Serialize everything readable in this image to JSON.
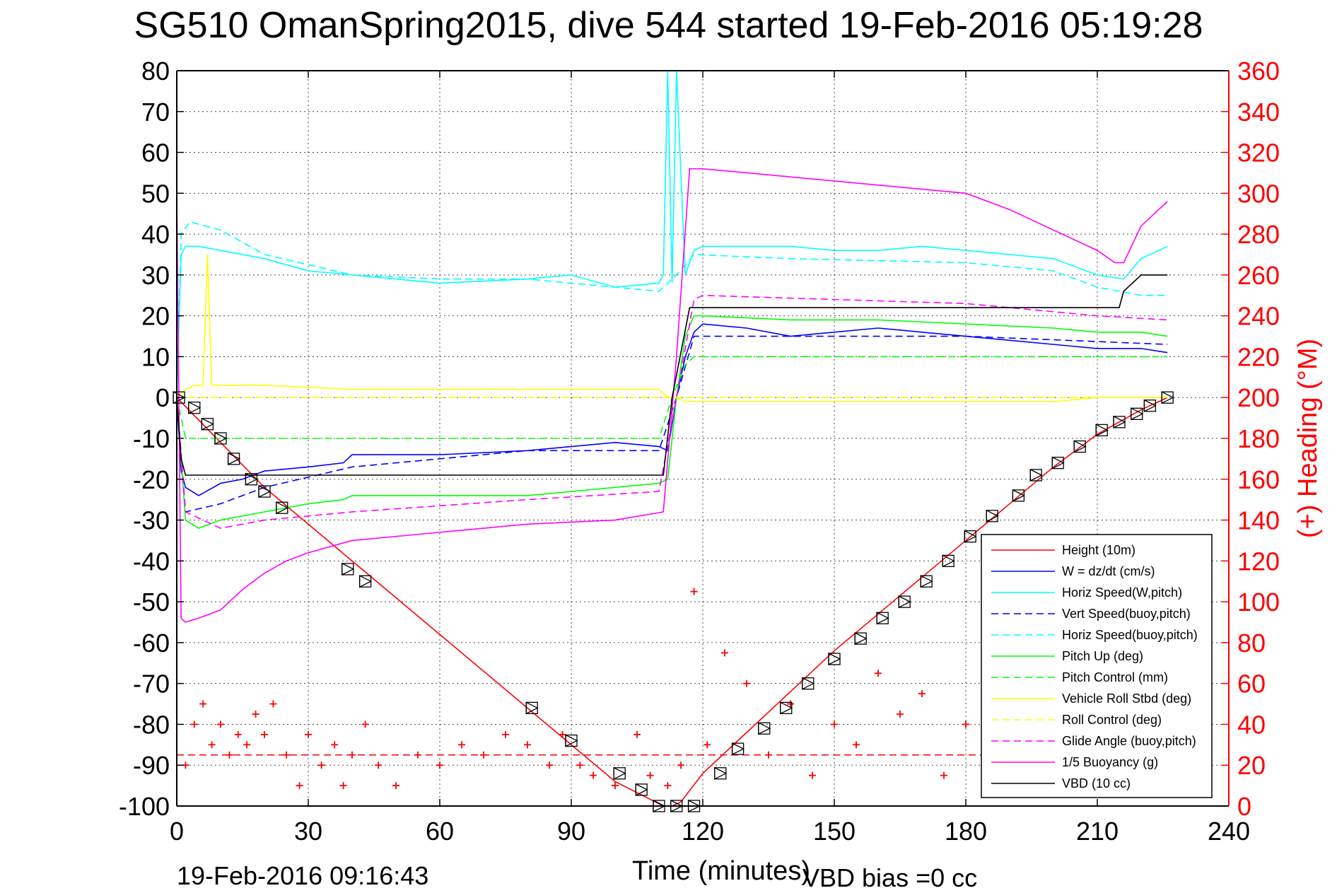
{
  "chart_data": {
    "type": "line",
    "title": "SG510 OmanSpring2015, dive 544 started 19-Feb-2016 05:19:28",
    "xlabel": "Time (minutes)",
    "ylabel_right": "(+) Heading (°M)",
    "footer_left": "19-Feb-2016 09:16:43",
    "footer_right": "VBD bias =0 cc",
    "xlim": [
      0,
      240
    ],
    "ylim": [
      -100,
      80
    ],
    "y2lim": [
      0,
      360
    ],
    "x_ticks": [
      0,
      30,
      60,
      90,
      120,
      150,
      180,
      210,
      240
    ],
    "y_ticks": [
      80,
      70,
      60,
      50,
      40,
      30,
      20,
      10,
      0,
      -10,
      -20,
      -30,
      -40,
      -50,
      -60,
      -70,
      -80,
      -90,
      -100
    ],
    "y2_ticks": [
      360,
      340,
      320,
      300,
      280,
      260,
      240,
      220,
      200,
      180,
      160,
      140,
      120,
      100,
      80,
      60,
      40,
      20,
      0
    ],
    "grid": true,
    "legend_position": "bottom-right",
    "colors": {
      "red": "#ff0000",
      "blue": "#0000ff",
      "cyan": "#00ffff",
      "green": "#00ff00",
      "yellow": "#ffff00",
      "magenta": "#ff00ff",
      "black": "#000000"
    },
    "legend": [
      {
        "label": "Height (10m)",
        "color": "#ff0000",
        "dash": "solid"
      },
      {
        "label": "W = dz/dt (cm/s)",
        "color": "#0000ff",
        "dash": "solid"
      },
      {
        "label": "Horiz Speed(W,pitch)",
        "color": "#00ffff",
        "dash": "solid"
      },
      {
        "label": "Vert Speed(buoy,pitch)",
        "color": "#0000ff",
        "dash": "dashed"
      },
      {
        "label": "Horiz Speed(buoy,pitch)",
        "color": "#00ffff",
        "dash": "dashed"
      },
      {
        "label": "Pitch Up (deg)",
        "color": "#00ff00",
        "dash": "solid"
      },
      {
        "label": "Pitch Control (mm)",
        "color": "#00ff00",
        "dash": "dashed"
      },
      {
        "label": "Vehicle Roll Stbd (deg)",
        "color": "#ffff00",
        "dash": "solid"
      },
      {
        "label": "Roll Control (deg)",
        "color": "#ffff00",
        "dash": "dashed"
      },
      {
        "label": "Glide Angle (buoy,pitch)",
        "color": "#ff00ff",
        "dash": "dashed"
      },
      {
        "label": "1/5 Buoyancy (g)",
        "color": "#ff00ff",
        "dash": "solid"
      },
      {
        "label": "VBD (10 cc)",
        "color": "#000000",
        "dash": "solid"
      }
    ],
    "series": [
      {
        "name": "Height (10m)",
        "axis": "left",
        "x": [
          0,
          10,
          20,
          40,
          60,
          80,
          100,
          111,
          113,
          115,
          120,
          130,
          140,
          150,
          160,
          170,
          180,
          190,
          200,
          210,
          220,
          226
        ],
        "y": [
          0,
          -11,
          -22,
          -40,
          -58,
          -76,
          -94,
          -100,
          -100,
          -99,
          -92,
          -82,
          -72,
          -62,
          -53,
          -44,
          -35,
          -26,
          -17,
          -9,
          -3,
          0
        ]
      },
      {
        "name": "W = dz/dt (cm/s)",
        "axis": "left",
        "x": [
          0,
          1,
          2,
          5,
          10,
          15,
          20,
          30,
          38,
          40,
          60,
          80,
          90,
          100,
          110,
          112,
          114,
          116,
          118,
          120,
          130,
          140,
          150,
          160,
          170,
          180,
          190,
          200,
          210,
          220,
          226
        ],
        "y": [
          0,
          -18,
          -22,
          -24,
          -21,
          -20,
          -18,
          -17,
          -16,
          -14,
          -14,
          -13,
          -12,
          -11,
          -12,
          -13,
          0,
          10,
          16,
          18,
          17,
          15,
          16,
          17,
          16,
          15,
          14,
          13,
          12,
          12,
          11
        ]
      },
      {
        "name": "Horiz Speed(W,pitch)",
        "axis": "left",
        "x": [
          0,
          1,
          2,
          5,
          10,
          20,
          30,
          40,
          60,
          80,
          90,
          100,
          110,
          111,
          112,
          113,
          114,
          116,
          118,
          120,
          130,
          140,
          150,
          160,
          170,
          180,
          190,
          200,
          210,
          216,
          220,
          226
        ],
        "y": [
          0,
          35,
          37,
          37,
          36,
          34,
          31,
          30,
          28,
          29,
          30,
          27,
          28,
          30,
          80,
          28,
          80,
          30,
          36,
          37,
          37,
          37,
          36,
          36,
          37,
          36,
          35,
          34,
          30,
          29,
          34,
          37
        ]
      },
      {
        "name": "Vert Speed(buoy,pitch)",
        "axis": "left",
        "x": [
          0,
          2,
          10,
          20,
          40,
          80,
          110,
          114,
          118,
          140,
          180,
          226
        ],
        "y": [
          0,
          -28,
          -26,
          -22,
          -17,
          -13,
          -13,
          0,
          15,
          15,
          15,
          13
        ]
      },
      {
        "name": "Horiz Speed(buoy,pitch)",
        "axis": "left",
        "x": [
          0,
          1,
          3,
          10,
          20,
          40,
          60,
          80,
          100,
          110,
          114,
          118,
          140,
          180,
          200,
          210,
          220,
          226
        ],
        "y": [
          0,
          40,
          43,
          41,
          35,
          30,
          29,
          29,
          27,
          26,
          30,
          35,
          34,
          33,
          31,
          27,
          25,
          25
        ]
      },
      {
        "name": "Pitch Up (deg)",
        "axis": "left",
        "x": [
          0,
          2,
          5,
          10,
          20,
          30,
          38,
          40,
          60,
          80,
          90,
          100,
          110,
          112,
          114,
          116,
          118,
          120,
          140,
          160,
          180,
          200,
          210,
          220,
          226
        ],
        "y": [
          0,
          -30,
          -32,
          -30,
          -28,
          -26,
          -25,
          -24,
          -24,
          -24,
          -23,
          -22,
          -21,
          -20,
          0,
          15,
          20,
          20,
          19,
          19,
          18,
          17,
          16,
          16,
          15
        ]
      },
      {
        "name": "Pitch Control (mm)",
        "axis": "left",
        "x": [
          0,
          2,
          10,
          60,
          90,
          110,
          113,
          116,
          118,
          120,
          150,
          180,
          210,
          226
        ],
        "y": [
          0,
          -10,
          -10,
          -10,
          -10,
          -10,
          0,
          8,
          10,
          10,
          10,
          10,
          10,
          10
        ]
      },
      {
        "name": "Vehicle Roll Stbd (deg)",
        "axis": "left",
        "x": [
          0,
          2,
          4,
          6,
          7,
          8,
          20,
          40,
          60,
          80,
          90,
          110,
          112,
          114,
          116,
          118,
          120,
          140,
          160,
          180,
          200,
          210,
          220,
          226
        ],
        "y": [
          0,
          2,
          3,
          3,
          35,
          3,
          3,
          2,
          2,
          2,
          2,
          2,
          0,
          0,
          -1,
          -1,
          -1,
          -1,
          -1,
          -1,
          -1,
          0,
          0,
          0
        ]
      },
      {
        "name": "Roll Control (deg)",
        "axis": "left",
        "x": [
          0,
          2,
          10,
          40,
          80,
          110,
          112,
          114,
          120,
          160,
          200,
          226
        ],
        "y": [
          0,
          0,
          0,
          0,
          0,
          0,
          0,
          0,
          0,
          0,
          0,
          0
        ]
      },
      {
        "name": "Glide Angle (buoy,pitch)",
        "axis": "left",
        "x": [
          0,
          2,
          10,
          20,
          40,
          80,
          110,
          114,
          118,
          120,
          150,
          180,
          210,
          226
        ],
        "y": [
          0,
          -28,
          -32,
          -30,
          -28,
          -25,
          -23,
          0,
          24,
          25,
          24,
          23,
          20,
          19
        ]
      },
      {
        "name": "1/5 Buoyancy (g)",
        "axis": "left",
        "x": [
          0,
          1,
          2,
          5,
          10,
          15,
          20,
          25,
          30,
          40,
          60,
          80,
          100,
          111,
          114,
          117,
          118,
          120,
          140,
          160,
          180,
          190,
          200,
          210,
          214,
          216,
          220,
          226
        ],
        "y": [
          50,
          -54,
          -55,
          -54,
          -52,
          -47,
          -43,
          -40,
          -38,
          -35,
          -33,
          -31,
          -30,
          -28,
          10,
          56,
          56,
          56,
          54,
          52,
          50,
          46,
          41,
          36,
          33,
          33,
          42,
          48
        ]
      },
      {
        "name": "VBD (10 cc)",
        "axis": "left",
        "x": [
          0,
          1,
          2,
          20,
          40,
          80,
          111,
          113,
          117,
          118,
          140,
          180,
          215,
          216,
          220,
          226
        ],
        "y": [
          0,
          -15,
          -19,
          -19,
          -19,
          -19,
          -19,
          0,
          22,
          22,
          22,
          22,
          22,
          26,
          30,
          30
        ]
      },
      {
        "name": "(+) Heading (°M)",
        "axis": "right",
        "x": [
          2,
          4,
          6,
          8,
          10,
          12,
          14,
          16,
          18,
          20,
          22,
          25,
          28,
          30,
          33,
          36,
          38,
          40,
          43,
          46,
          50,
          55,
          60,
          65,
          70,
          75,
          80,
          85,
          88,
          92,
          95,
          100,
          105,
          108,
          112,
          115,
          118,
          121,
          125,
          130,
          135,
          140,
          145,
          150,
          155,
          160,
          165,
          170,
          175,
          180,
          185,
          190,
          200,
          210,
          220
        ],
        "y": [
          20,
          40,
          50,
          30,
          40,
          25,
          35,
          30,
          45,
          35,
          50,
          25,
          10,
          35,
          20,
          30,
          10,
          25,
          40,
          20,
          10,
          25,
          20,
          30,
          25,
          35,
          30,
          20,
          35,
          20,
          15,
          10,
          35,
          15,
          10,
          20,
          105,
          30,
          75,
          60,
          25,
          50,
          15,
          40,
          30,
          65,
          45,
          55,
          15,
          40,
          60,
          20,
          25,
          30,
          20
        ]
      },
      {
        "name": "Heading target",
        "axis": "right",
        "x": [
          0,
          226
        ],
        "y": [
          25,
          25
        ]
      }
    ],
    "markers": {
      "triangle_x": [
        0.5,
        4,
        7,
        10,
        13,
        17,
        20,
        24,
        39,
        43,
        81,
        90,
        101,
        106,
        110,
        114,
        118,
        124,
        128,
        134,
        139,
        144,
        150,
        156,
        161,
        166,
        171,
        176,
        181,
        186,
        192,
        196,
        201,
        206,
        211,
        215,
        219,
        222,
        226
      ],
      "triangle_y": [
        0,
        -2.5,
        -6.5,
        -10,
        -15,
        -20,
        -23,
        -27,
        -42,
        -45,
        -76,
        -84,
        -92,
        -96,
        -100,
        -100,
        -100,
        -92,
        -86,
        -81,
        -76,
        -70,
        -64,
        -59,
        -54,
        -50,
        -45,
        -40,
        -34,
        -29,
        -24,
        -19,
        -16,
        -12,
        -8,
        -6,
        -4,
        -2,
        0
      ]
    }
  }
}
